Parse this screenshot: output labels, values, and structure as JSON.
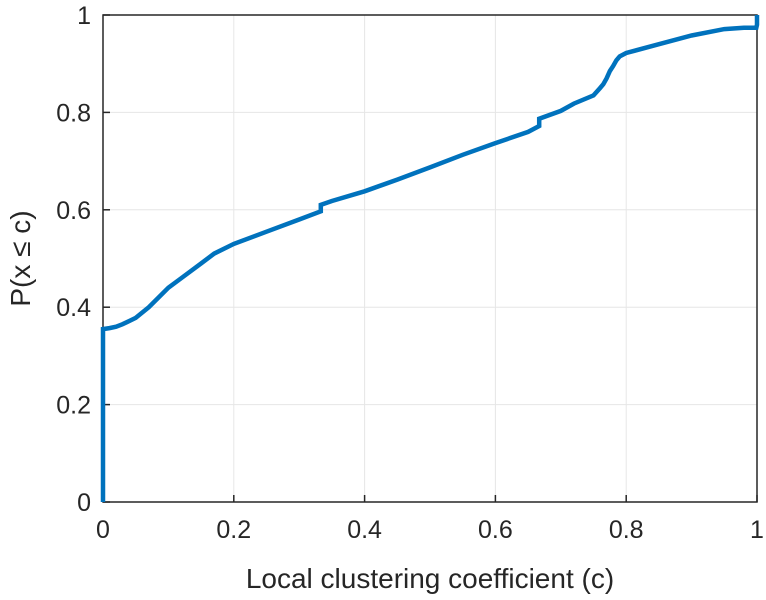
{
  "chart_data": {
    "type": "line",
    "title": "",
    "xlabel": "Local clustering coefficient (c)",
    "ylabel": "P(x ≤ c)",
    "xlim": [
      0,
      1
    ],
    "ylim": [
      0,
      1
    ],
    "grid": true,
    "xticks": [
      0,
      0.2,
      0.4,
      0.6,
      0.8,
      1
    ],
    "yticks": [
      0,
      0.2,
      0.4,
      0.6,
      0.8,
      1
    ],
    "xtick_labels": [
      "0",
      "0.2",
      "0.4",
      "0.6",
      "0.8",
      "1"
    ],
    "ytick_labels": [
      "0",
      "0.2",
      "0.4",
      "0.6",
      "0.8",
      "1"
    ],
    "line_color": "#0072BD",
    "series": [
      {
        "x": [
          0,
          0,
          0.01,
          0.02,
          0.03,
          0.05,
          0.07,
          0.1,
          0.12,
          0.15,
          0.17,
          0.2,
          0.25,
          0.3,
          0.333,
          0.333,
          0.35,
          0.4,
          0.45,
          0.5,
          0.55,
          0.6,
          0.65,
          0.667,
          0.667,
          0.7,
          0.72,
          0.75,
          0.76,
          0.765,
          0.77,
          0.775,
          0.78,
          0.785,
          0.79,
          0.8,
          0.85,
          0.9,
          0.95,
          0.98,
          0.999,
          1.0,
          1.0
        ],
        "y": [
          0,
          0.355,
          0.357,
          0.36,
          0.365,
          0.378,
          0.4,
          0.44,
          0.46,
          0.49,
          0.51,
          0.53,
          0.555,
          0.58,
          0.597,
          0.61,
          0.618,
          0.638,
          0.662,
          0.687,
          0.713,
          0.737,
          0.76,
          0.772,
          0.787,
          0.803,
          0.818,
          0.835,
          0.85,
          0.858,
          0.87,
          0.885,
          0.895,
          0.907,
          0.915,
          0.922,
          0.94,
          0.958,
          0.971,
          0.974,
          0.974,
          0.98,
          1.0
        ]
      }
    ]
  }
}
